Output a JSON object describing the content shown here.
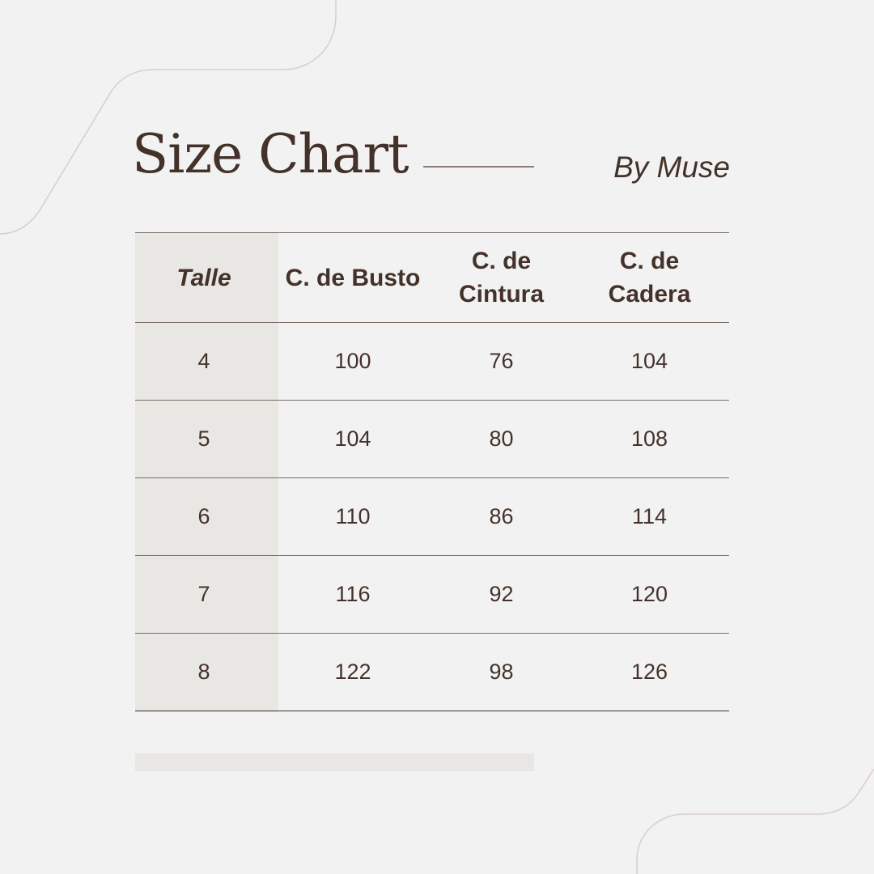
{
  "header": {
    "title": "Size Chart",
    "byline": "By Muse"
  },
  "table": {
    "columns": [
      "Talle",
      "C. de Busto",
      "C. de Cintura",
      "C. de Cadera"
    ],
    "rows": [
      [
        "4",
        "100",
        "76",
        "104"
      ],
      [
        "5",
        "104",
        "80",
        "108"
      ],
      [
        "6",
        "110",
        "86",
        "114"
      ],
      [
        "7",
        "116",
        "92",
        "120"
      ],
      [
        "8",
        "122",
        "98",
        "126"
      ]
    ]
  },
  "colors": {
    "text": "#44322a",
    "background": "#f2f2f2",
    "accent_panel": "#e8e7e3",
    "decor_line": "#d9cec8"
  }
}
